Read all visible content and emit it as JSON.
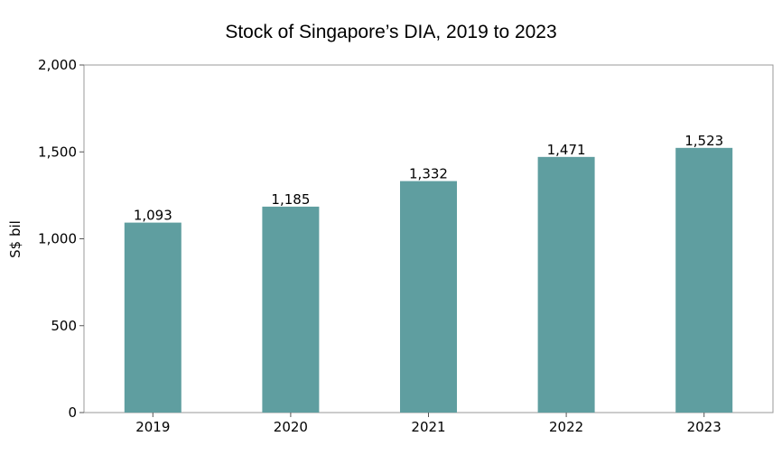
{
  "chart_data": {
    "type": "bar",
    "title": "Stock of Singapore’s DIA, 2019 to 2023",
    "categories": [
      "2019",
      "2020",
      "2021",
      "2022",
      "2023"
    ],
    "values": [
      1093,
      1185,
      1332,
      1471,
      1523
    ],
    "data_labels": [
      "1,093",
      "1,185",
      "1,332",
      "1,471",
      "1,523"
    ],
    "xlabel": "",
    "ylabel": "S$ bil",
    "ylim": [
      0,
      2000
    ],
    "yticks": [
      0,
      500,
      1000,
      1500,
      2000
    ],
    "ytick_labels": [
      "0",
      "500",
      "1,000",
      "1,500",
      "2,000"
    ],
    "grid": false,
    "bar_color": "#5f9ea0",
    "axis_color": "#999999"
  }
}
